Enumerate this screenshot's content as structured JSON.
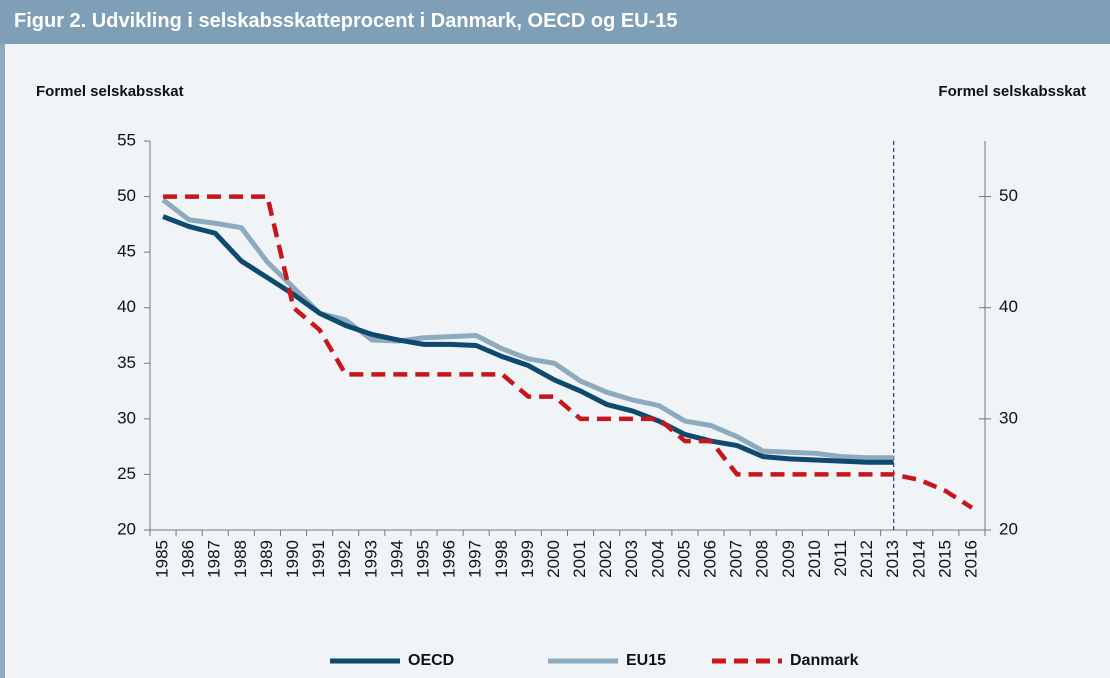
{
  "title": "Figur 2. Udvikling i selskabsskatteprocent i Danmark, OECD og EU-15",
  "chart_data": {
    "type": "line",
    "y_label": "Formel selskabsskat",
    "y2_label": "Formel selskabsskat",
    "categories": [
      "1985",
      "1986",
      "1987",
      "1988",
      "1989",
      "1990",
      "1991",
      "1992",
      "1993",
      "1994",
      "1995",
      "1996",
      "1997",
      "1998",
      "1999",
      "2000",
      "2001",
      "2002",
      "2003",
      "2004",
      "2005",
      "2006",
      "2007",
      "2008",
      "2009",
      "2010",
      "2011",
      "2012",
      "2013",
      "2014",
      "2015",
      "2016"
    ],
    "series": [
      {
        "name": "OECD",
        "color": "#0d4a6e",
        "dash": false,
        "values": [
          48.2,
          47.3,
          46.7,
          44.2,
          42.7,
          41.2,
          39.5,
          38.4,
          37.6,
          37.1,
          36.7,
          36.7,
          36.6,
          35.6,
          34.8,
          33.5,
          32.5,
          31.3,
          30.7,
          29.8,
          28.6,
          28.0,
          27.6,
          26.6,
          26.4,
          26.3,
          26.2,
          26.1,
          26.1,
          null,
          null,
          null
        ]
      },
      {
        "name": "EU15",
        "color": "#8eaabe",
        "dash": false,
        "values": [
          49.7,
          47.9,
          47.6,
          47.2,
          44.1,
          41.8,
          39.5,
          38.9,
          37.1,
          37.0,
          37.3,
          37.4,
          37.5,
          36.3,
          35.4,
          35.0,
          33.4,
          32.4,
          31.7,
          31.2,
          29.8,
          29.4,
          28.4,
          27.1,
          27.0,
          26.9,
          26.6,
          26.5,
          26.5,
          null,
          null,
          null
        ]
      },
      {
        "name": "Danmark",
        "color": "#c8161d",
        "dash": true,
        "values": [
          50,
          50,
          50,
          50,
          50,
          40,
          38,
          34,
          34,
          34,
          34,
          34,
          34,
          34,
          32,
          32,
          30,
          30,
          30,
          30,
          28,
          28,
          25,
          25,
          25,
          25,
          25,
          25,
          25,
          24.5,
          23.5,
          22
        ]
      }
    ],
    "ylim": [
      20,
      55
    ],
    "yticks": [
      20,
      25,
      30,
      35,
      40,
      45,
      50,
      55
    ],
    "y2lim": [
      20,
      55
    ],
    "y2ticks": [
      20,
      30,
      40,
      50
    ],
    "grid": false,
    "legend": "bottom"
  }
}
